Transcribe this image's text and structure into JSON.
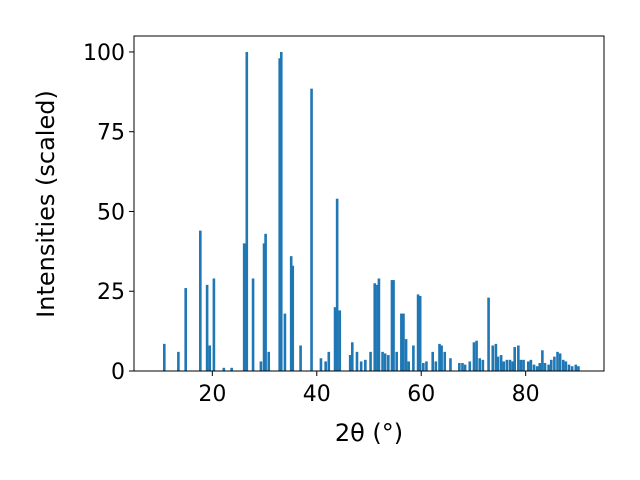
{
  "chart_data": {
    "type": "bar",
    "title": "",
    "xlabel": "2θ (°)",
    "ylabel": "Intensities (scaled)",
    "xlim": [
      5,
      95
    ],
    "ylim": [
      0,
      105
    ],
    "xticks": [
      20,
      40,
      60,
      80
    ],
    "yticks": [
      0,
      25,
      50,
      75,
      100
    ],
    "grid": false,
    "legend": "none",
    "bar_color": "#1f77b4",
    "bar_width": 0.5,
    "x": [
      10.8,
      13.5,
      14.9,
      17.7,
      19.0,
      19.5,
      20.3,
      22.2,
      23.7,
      26.1,
      26.6,
      27.8,
      29.3,
      29.9,
      30.2,
      30.8,
      32.9,
      33.2,
      33.9,
      35.1,
      35.4,
      36.9,
      39.0,
      40.8,
      41.7,
      42.3,
      43.5,
      43.9,
      44.4,
      46.4,
      46.8,
      47.7,
      48.5,
      49.3,
      50.3,
      51.1,
      51.6,
      51.9,
      52.6,
      53.1,
      53.7,
      54.4,
      54.7,
      55.3,
      56.2,
      56.6,
      57.1,
      57.6,
      58.5,
      59.4,
      59.8,
      60.4,
      61.0,
      62.2,
      62.8,
      63.5,
      63.9,
      64.5,
      65.6,
      67.3,
      67.9,
      68.4,
      69.3,
      70.1,
      70.6,
      71.2,
      71.8,
      72.9,
      73.7,
      74.3,
      74.7,
      75.3,
      75.8,
      76.4,
      77.0,
      77.5,
      77.9,
      78.6,
      79.1,
      79.6,
      80.5,
      81.0,
      81.6,
      82.2,
      82.7,
      83.2,
      83.7,
      84.4,
      84.9,
      85.5,
      86.1,
      86.6,
      87.2,
      87.7,
      88.3,
      88.9,
      89.6,
      90.1
    ],
    "values": [
      8.5,
      6.0,
      26.0,
      44.0,
      27.0,
      8.0,
      29.0,
      1.0,
      1.0,
      40.0,
      100.0,
      29.0,
      3.0,
      40.0,
      43.0,
      6.0,
      98.0,
      100.0,
      18.0,
      36.0,
      33.0,
      8.0,
      88.5,
      4.0,
      3.0,
      6.0,
      20.0,
      54.0,
      19.0,
      5.0,
      9.0,
      6.0,
      3.0,
      3.5,
      6.0,
      27.5,
      27.0,
      29.0,
      6.0,
      5.5,
      5.0,
      28.5,
      28.5,
      6.0,
      18.0,
      18.0,
      10.0,
      3.0,
      8.0,
      24.0,
      23.5,
      2.5,
      3.0,
      6.0,
      3.0,
      8.5,
      8.0,
      6.0,
      4.0,
      2.5,
      2.5,
      2.0,
      3.0,
      9.0,
      9.5,
      4.0,
      3.5,
      23.0,
      8.0,
      8.5,
      4.5,
      5.0,
      3.0,
      3.5,
      3.5,
      3.0,
      7.5,
      8.0,
      3.5,
      3.5,
      3.0,
      3.5,
      2.0,
      1.5,
      2.5,
      6.5,
      2.5,
      2.0,
      3.5,
      4.5,
      6.0,
      5.5,
      3.5,
      3.0,
      2.0,
      1.5,
      2.0,
      1.5
    ]
  }
}
